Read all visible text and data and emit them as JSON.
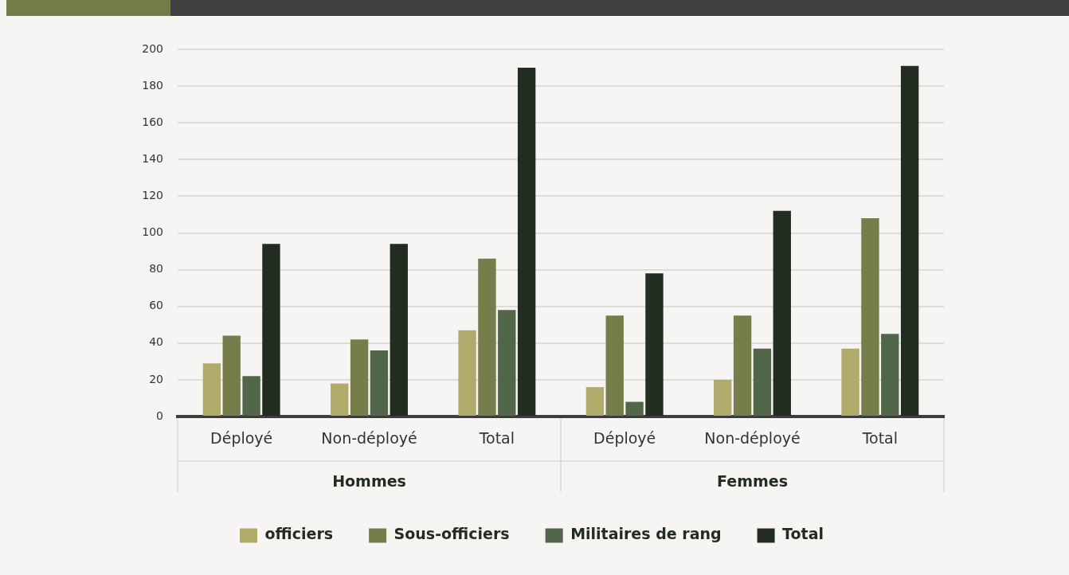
{
  "chart_data": {
    "type": "bar",
    "categories": [
      "Déployé",
      "Non-déployé",
      "Total",
      "Déployé",
      "Non-déployé",
      "Total"
    ],
    "series": [
      {
        "name": "officiers",
        "color": "#b0ab6b",
        "values": [
          29,
          18,
          47,
          16,
          20,
          37
        ]
      },
      {
        "name": "Sous-officiers",
        "color": "#767c4a",
        "values": [
          44,
          42,
          86,
          55,
          55,
          108
        ]
      },
      {
        "name": "Militaires de rang",
        "color": "#52674a",
        "values": [
          22,
          36,
          58,
          8,
          37,
          45
        ]
      },
      {
        "name": "Total",
        "color": "#232c21",
        "values": [
          94,
          94,
          190,
          78,
          112,
          191
        ]
      }
    ],
    "annotations": [
      "Hommes",
      "Femmes"
    ],
    "ylim": [
      0,
      200
    ],
    "yticks": [
      0,
      20,
      40,
      60,
      80,
      100,
      120,
      140,
      160,
      180,
      200
    ],
    "grid": "y",
    "legend": "bottom"
  }
}
